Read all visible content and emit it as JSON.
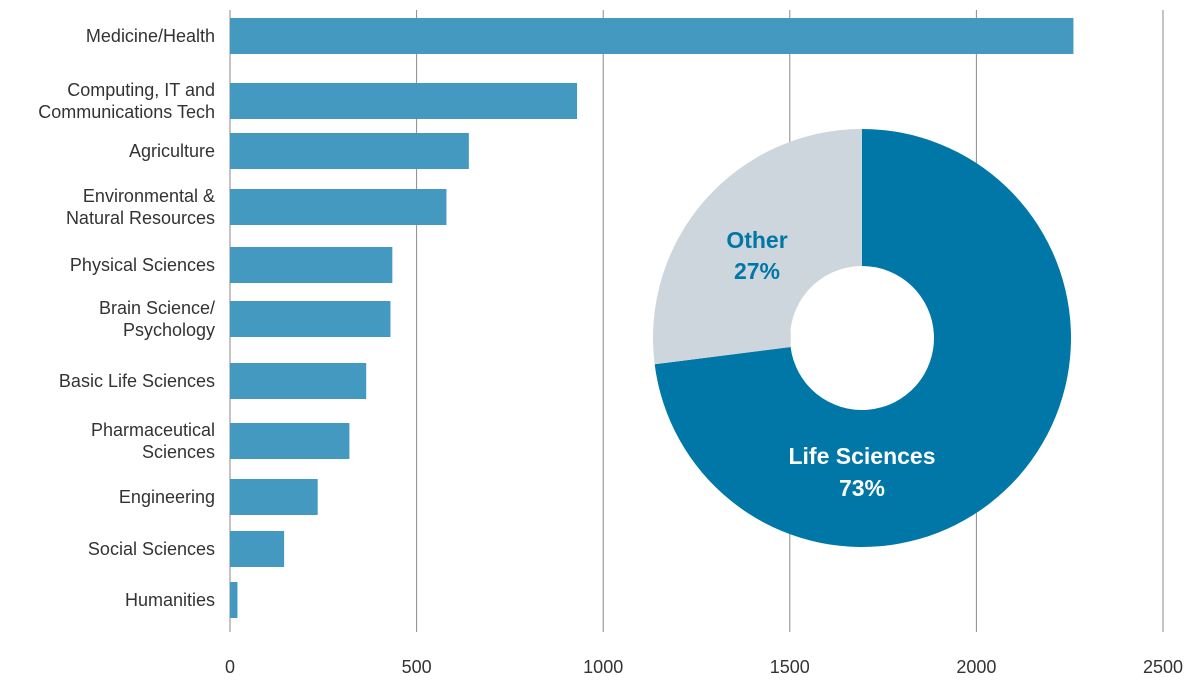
{
  "chart_data": [
    {
      "type": "hbar",
      "categories": [
        "Medicine/Health",
        "Computing, IT and\nCommunications Tech",
        "Agriculture",
        "Environmental &\nNatural Resources",
        "Physical Sciences",
        "Brain Science/\nPsychology",
        "Basic Life Sciences",
        "Pharmaceutical\nSciences",
        "Engineering",
        "Social Sciences",
        "Humanities"
      ],
      "values": [
        2260,
        930,
        640,
        580,
        435,
        430,
        365,
        320,
        235,
        145,
        20
      ],
      "color": "#4399bf",
      "xlim": [
        0,
        2500
      ],
      "xticks": [
        0,
        500,
        1000,
        1500,
        2000,
        2500
      ],
      "grid": true
    },
    {
      "type": "donut",
      "categories": [
        "Life Sciences",
        "Other"
      ],
      "values": [
        73,
        27
      ],
      "value_labels": [
        "73%",
        "27%"
      ],
      "colors": [
        "#0077a6",
        "#cdd5dd"
      ]
    }
  ]
}
